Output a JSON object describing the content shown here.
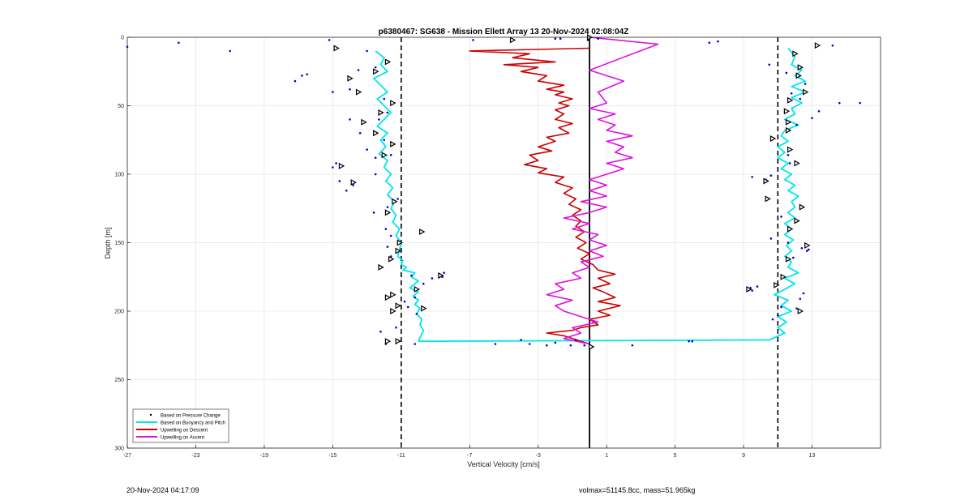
{
  "chart_data": {
    "type": "line",
    "title": "p6380467: SG638 - Mission Ellett Array 13 20-Nov-2024 02:08:04Z",
    "xlabel": "Vertical Velocity [cm/s]",
    "ylabel": "Depth [m]",
    "xlim": [
      -27,
      17
    ],
    "ylim": [
      0,
      300
    ],
    "y_reversed": true,
    "grid": true,
    "legend_position": "bottom-left",
    "x_ticks": [
      -27,
      -23,
      -19,
      -15,
      -11,
      -7,
      -3,
      1,
      5,
      9,
      13
    ],
    "y_ticks": [
      0,
      50,
      100,
      150,
      200,
      250,
      300
    ],
    "reference_lines": {
      "solid_x": 0,
      "dashed_x": [
        -11,
        11
      ]
    },
    "legend": [
      "Based on Pressure Change",
      "Based on Buoyancy and Pitch",
      "Upwelling on Descent",
      "Upwelling on Ascent"
    ],
    "series": [
      {
        "name": "Based on Buoyancy and Pitch",
        "color": "#00e5ee",
        "segments": [
          {
            "x": [
              -12.5,
              -12.0,
              -12.2,
              -11.8,
              -12.6,
              -12.2,
              -11.8,
              -12.4,
              -12.0,
              -11.6,
              -12.0,
              -12.4,
              -11.8,
              -12.2,
              -11.9,
              -12.3,
              -11.8,
              -12.0,
              -11.6,
              -11.9,
              -11.5,
              -11.8,
              -11.4,
              -11.6,
              -11.3,
              -11.5,
              -11.1,
              -11.3,
              -11.0,
              -11.1,
              -11.2,
              -10.9,
              -11.0,
              -10.7,
              -10.9,
              -10.2,
              -10.4,
              -10.0,
              -10.2,
              -10.5,
              -10.0,
              -10.3,
              -10.0,
              -10.2,
              -9.9,
              -10.1,
              -9.8,
              -9.9,
              -9.7,
              -10.0
            ],
            "y": [
              10,
              15,
              20,
              25,
              30,
              35,
              40,
              45,
              50,
              55,
              60,
              65,
              70,
              75,
              80,
              85,
              90,
              95,
              100,
              105,
              110,
              115,
              120,
              125,
              130,
              135,
              140,
              145,
              150,
              155,
              160,
              163,
              166,
              168,
              170,
              172,
              175,
              178,
              180,
              183,
              186,
              189,
              192,
              195,
              198,
              202,
              206,
              210,
              214,
              222
            ]
          },
          {
            "x": [
              -10.0,
              10.5
            ],
            "y": [
              222,
              221
            ]
          },
          {
            "x": [
              10.5,
              11.4,
              11.0,
              11.5,
              11.0,
              11.8,
              11.2,
              11.6,
              10.8,
              11.4,
              12.0,
              11.4,
              12.2,
              11.6,
              11.8,
              11.4,
              11.8,
              11.5,
              11.9,
              11.4,
              11.8,
              11.4,
              12.0,
              11.6,
              12.0,
              11.8,
              12.2,
              11.6,
              12.0,
              11.4,
              11.8,
              11.2,
              11.6,
              11.0,
              11.4,
              11.0,
              11.6,
              11.2,
              11.4,
              12.2,
              11.4,
              12.0,
              11.8,
              12.4,
              11.8,
              12.6,
              11.8,
              12.6,
              12.0,
              12.4,
              11.8,
              12.0,
              11.6
            ],
            "y": [
              221,
              216,
              212,
              208,
              204,
              200,
              196,
              192,
              188,
              184,
              180,
              176,
              172,
              168,
              164,
              160,
              156,
              152,
              148,
              144,
              140,
              136,
              132,
              128,
              124,
              120,
              116,
              112,
              108,
              104,
              100,
              96,
              92,
              88,
              84,
              80,
              76,
              72,
              68,
              64,
              60,
              56,
              52,
              48,
              44,
              40,
              36,
              32,
              28,
              24,
              20,
              14,
              8
            ]
          }
        ]
      },
      {
        "name": "Upwelling on Descent",
        "color": "#cc0000",
        "x": [
          0,
          -7.0,
          -3.5,
          -4.5,
          -2.0,
          -5.0,
          -3.0,
          -4.0,
          -2.5,
          -3.0,
          -1.5,
          -2.5,
          -1.5,
          -2.0,
          -1.0,
          -1.8,
          -1.2,
          -2.0,
          -1.5,
          -2.0,
          -1.0,
          -1.8,
          -1.2,
          -2.5,
          -2.0,
          -3.0,
          -2.2,
          -3.5,
          -3.0,
          -3.8,
          -2.5,
          -3.0,
          -1.5,
          -2.0,
          -1.0,
          -1.5,
          -0.8,
          -1.2,
          -0.5,
          -1.0,
          -0.5,
          -0.8,
          -0.3,
          -0.8,
          -0.2,
          -0.7,
          0.0,
          -0.5,
          0.2,
          0.5,
          1.5,
          0.5,
          1.2,
          0.2,
          0.8,
          1.5,
          0.5,
          1.8,
          0.5,
          1.2,
          0.0,
          0.5,
          -0.5,
          -1.0,
          -2.5,
          -1.5,
          -1.0,
          0
        ],
        "y": [
          8,
          10,
          12,
          15,
          18,
          20,
          22,
          25,
          28,
          32,
          35,
          38,
          40,
          42,
          45,
          48,
          50,
          53,
          56,
          60,
          63,
          66,
          70,
          73,
          76,
          80,
          83,
          86,
          90,
          93,
          96,
          99,
          102,
          106,
          110,
          114,
          118,
          122,
          126,
          130,
          134,
          138,
          142,
          146,
          150,
          154,
          158,
          162,
          166,
          170,
          173,
          176,
          180,
          183,
          186,
          190,
          193,
          196,
          200,
          203,
          206,
          210,
          212,
          214,
          216,
          218,
          220,
          224
        ]
      },
      {
        "name": "Upwelling on Ascent",
        "color": "#dd11dd",
        "x": [
          0,
          -1.5,
          -0.5,
          -1.0,
          0.5,
          -0.5,
          -1.5,
          -2.0,
          -1.0,
          -2.5,
          -1.5,
          -2.0,
          -0.5,
          -1.0,
          0.0,
          -0.5,
          0.8,
          0.0,
          1.0,
          0.0,
          0.5,
          -1.0,
          0.0,
          -1.5,
          0.0,
          1.0,
          -0.5,
          1.0,
          0.0,
          1.0,
          0.0,
          1.0,
          2.0,
          1.0,
          2.5,
          1.5,
          2.0,
          1.0,
          2.5,
          1.0,
          1.5,
          0.5,
          1.5,
          0.0,
          1.0,
          0.5,
          2.0,
          0.0,
          4.0,
          0
        ],
        "y": [
          224,
          220,
          216,
          212,
          208,
          204,
          200,
          196,
          192,
          188,
          184,
          180,
          176,
          172,
          168,
          164,
          160,
          156,
          152,
          148,
          144,
          140,
          136,
          132,
          128,
          124,
          120,
          116,
          112,
          108,
          104,
          100,
          96,
          92,
          88,
          84,
          80,
          76,
          72,
          68,
          64,
          60,
          56,
          52,
          48,
          40,
          32,
          24,
          5,
          0
        ]
      }
    ],
    "pressure_change_points": {
      "name": "Based on Pressure Change",
      "color": "#0000cc",
      "x": [
        -27,
        -24,
        -21,
        -15.2,
        -16.8,
        -17.2,
        -16.5,
        -13,
        -14,
        -12.5,
        -15,
        -13.5,
        -11.8,
        -12.3,
        -12,
        -13.4,
        -12,
        -14,
        -11.6,
        -13,
        -12.5,
        -14.2,
        -14.8,
        -15,
        -14.6,
        -13.8,
        -12.5,
        -11.2,
        -11.8,
        -12.6,
        -11.9,
        -11.6,
        -11.8,
        -11.6,
        -11.7,
        -10.4,
        -9.7,
        -8.5,
        -8.6,
        -9.2,
        -10.2,
        -10.8,
        -10.6,
        -10.1,
        -11.3,
        -12.2,
        -11.9,
        -10.2,
        -4,
        -0.8,
        -2,
        -2.5,
        -5.5,
        2.5,
        6,
        7,
        7.5,
        9.4,
        9.5,
        9.8,
        10.3,
        10.6,
        9.5,
        11,
        10.7,
        11.2,
        12.1,
        12.3,
        12.5,
        13.4,
        14.6,
        15.8,
        14.2,
        10.5,
        11.5,
        12.6,
        11.8,
        12.3,
        13,
        12.1,
        11.6,
        11.7,
        11.2,
        10.6,
        12.4,
        11.9,
        12.7,
        12.8,
        11.6,
        -2,
        -1.7,
        5.8,
        -3.5,
        -1.1,
        -0.3,
        -0.1,
        0.5,
        -6.8
      ],
      "y": [
        7,
        4,
        10,
        2,
        28,
        32,
        27,
        10,
        38,
        22,
        40,
        24,
        55,
        60,
        45,
        70,
        75,
        60,
        86,
        82,
        88,
        112,
        92,
        95,
        105,
        108,
        100,
        118,
        124,
        128,
        140,
        145,
        153,
        160,
        162,
        174,
        180,
        172,
        175,
        176,
        190,
        193,
        197,
        202,
        212,
        215,
        224,
        224,
        221,
        221,
        223,
        225,
        224,
        225,
        222,
        4,
        3,
        183,
        185,
        182,
        104,
        101,
        102,
        203,
        206,
        197,
        198,
        191,
        187,
        54,
        48,
        48,
        6,
        20,
        26,
        34,
        41,
        45,
        59,
        64,
        86,
        92,
        131,
        147,
        154,
        161,
        156,
        155,
        150,
        1,
        1,
        222,
        224,
        225,
        225,
        2,
        1,
        2
      ]
    },
    "triangle_markers": {
      "x": [
        -14.8,
        -11.8,
        -12.5,
        -14,
        -13.5,
        -11.5,
        -12.2,
        -13.2,
        -12.5,
        -11.5,
        -12,
        -14.5,
        -13.8,
        -11.4,
        -11.8,
        -9.8,
        -11.1,
        -11.2,
        -11.6,
        -12.2,
        -11.8,
        -11.2,
        -11.2,
        -11.5,
        -8.7,
        -10.1,
        -11.5,
        -9.7,
        -11.8,
        -4.5,
        0,
        13.3,
        12.0,
        12.3,
        12.2,
        12.6,
        11.7,
        11.5,
        11.6,
        11.6,
        10.7,
        11.7,
        12.1,
        10.3,
        10.4,
        12.4,
        12.1,
        11.7,
        12.7,
        11.6,
        11.3,
        10.9,
        9.3,
        12.3,
        0.1
      ],
      "y": [
        8,
        18,
        25,
        30,
        40,
        48,
        55,
        62,
        70,
        78,
        86,
        94,
        106,
        120,
        128,
        142,
        150,
        156,
        162,
        168,
        190,
        222,
        196,
        200,
        174,
        184,
        188,
        198,
        222,
        2,
        0,
        6,
        12,
        22,
        28,
        40,
        46,
        54,
        62,
        68,
        74,
        82,
        92,
        105,
        118,
        124,
        134,
        140,
        152,
        162,
        175,
        181,
        184,
        200,
        226
      ]
    },
    "watermark": ""
  },
  "footer": {
    "date": "20-Nov-2024 04:17:09",
    "info": "volmax=51145.8cc, mass=51.965kg"
  }
}
